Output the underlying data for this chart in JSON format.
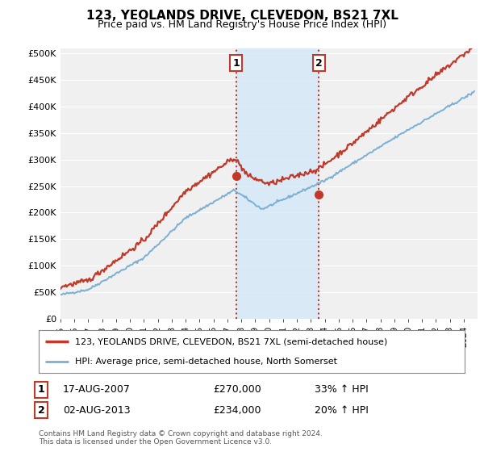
{
  "title": "123, YEOLANDS DRIVE, CLEVEDON, BS21 7XL",
  "subtitle": "Price paid vs. HM Land Registry's House Price Index (HPI)",
  "ylabel_ticks": [
    "£0",
    "£50K",
    "£100K",
    "£150K",
    "£200K",
    "£250K",
    "£300K",
    "£350K",
    "£400K",
    "£450K",
    "£500K"
  ],
  "ytick_values": [
    0,
    50000,
    100000,
    150000,
    200000,
    250000,
    300000,
    350000,
    400000,
    450000,
    500000
  ],
  "ylim": [
    0,
    510000
  ],
  "x_start_year": 1995,
  "x_end_year": 2025,
  "hpi_color": "#7bafd4",
  "price_color": "#c0392b",
  "vline_color": "#c0392b",
  "shade_color": "#d6eaf8",
  "legend_line1": "123, YEOLANDS DRIVE, CLEVEDON, BS21 7XL (semi-detached house)",
  "legend_line2": "HPI: Average price, semi-detached house, North Somerset",
  "sale1_label": "1",
  "sale1_date": "17-AUG-2007",
  "sale1_price": "£270,000",
  "sale1_info": "33% ↑ HPI",
  "sale1_year": 2007.62,
  "sale1_value": 270000,
  "sale2_label": "2",
  "sale2_date": "02-AUG-2013",
  "sale2_price": "£234,000",
  "sale2_info": "20% ↑ HPI",
  "sale2_year": 2013.59,
  "sale2_value": 234000,
  "footnote1": "Contains HM Land Registry data © Crown copyright and database right 2024.",
  "footnote2": "This data is licensed under the Open Government Licence v3.0.",
  "bg_color": "#ffffff",
  "plot_bg_color": "#f0f0f0"
}
